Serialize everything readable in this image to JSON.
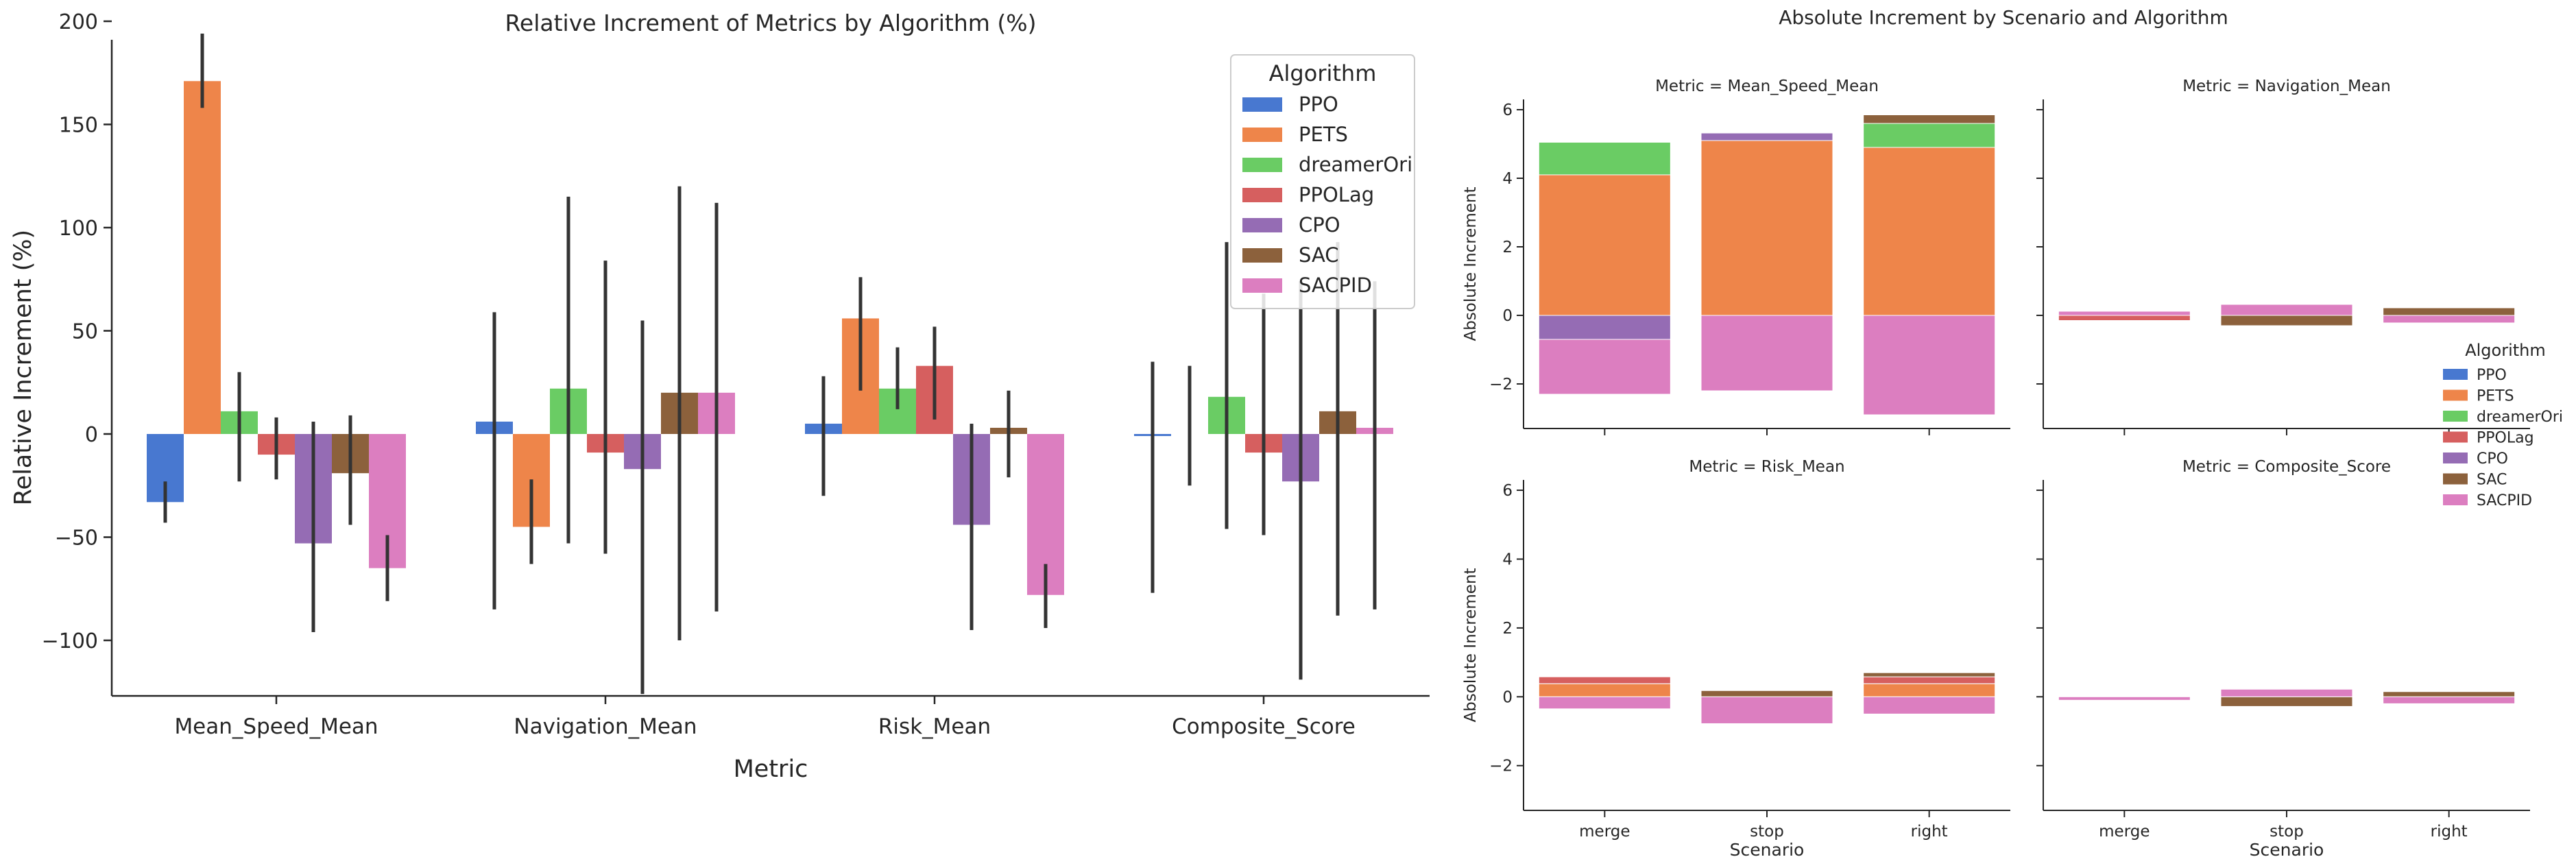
{
  "colors": {
    "PPO": "#4878d0",
    "PETS": "#ee854a",
    "dreamerOri": "#6acc64",
    "PPOLag": "#d65f5f",
    "CPO": "#956cb4",
    "SAC": "#8c613c",
    "SACPID": "#dc7ec0",
    "axis": "#262626",
    "errorbar": "#333333"
  },
  "chart_data": [
    {
      "type": "bar",
      "title": "Relative Increment of Metrics by Algorithm (%)",
      "xlabel": "Metric",
      "ylabel": "Relative Increment (%)",
      "categories": [
        "Mean_Speed_Mean",
        "Navigation_Mean",
        "Risk_Mean",
        "Composite_Score"
      ],
      "ylim": [
        -140,
        210
      ],
      "yticks": [
        -100,
        -50,
        0,
        50,
        100,
        150,
        200
      ],
      "legend": {
        "title": "Algorithm",
        "placement": "top-right"
      },
      "series": [
        {
          "name": "PPO",
          "values": [
            -33,
            6,
            5,
            -1
          ],
          "err_low": [
            -43,
            -85,
            -30,
            -77
          ],
          "err_high": [
            -23,
            59,
            28,
            35
          ]
        },
        {
          "name": "PETS",
          "values": [
            171,
            -45,
            56,
            0
          ],
          "err_low": [
            158,
            -63,
            21,
            -25
          ],
          "err_high": [
            194,
            -22,
            76,
            33
          ]
        },
        {
          "name": "dreamerOri",
          "values": [
            11,
            22,
            22,
            18
          ],
          "err_low": [
            -23,
            -53,
            12,
            -46
          ],
          "err_high": [
            30,
            115,
            42,
            93
          ]
        },
        {
          "name": "PPOLag",
          "values": [
            -10,
            -9,
            33,
            -9
          ],
          "err_low": [
            -22,
            -58,
            7,
            -49
          ],
          "err_high": [
            8,
            84,
            52,
            68
          ]
        },
        {
          "name": "CPO",
          "values": [
            -53,
            -17,
            -44,
            -23
          ],
          "err_low": [
            -96,
            -126,
            -95,
            -119
          ],
          "err_high": [
            6,
            55,
            5,
            74
          ]
        },
        {
          "name": "SAC",
          "values": [
            -19,
            20,
            3,
            11
          ],
          "err_low": [
            -44,
            -100,
            -21,
            -88
          ],
          "err_high": [
            9,
            120,
            21,
            93
          ]
        },
        {
          "name": "SACPID",
          "values": [
            -65,
            20,
            -78,
            3
          ],
          "err_low": [
            -81,
            -86,
            -94,
            -85
          ],
          "err_high": [
            -49,
            112,
            -63,
            74
          ]
        }
      ]
    },
    {
      "type": "bar",
      "title": "Absolute Increment by Scenario and Algorithm",
      "stacked": true,
      "xlabel": "Scenario",
      "ylabel": "Absolute Increment",
      "scenarios": [
        "merge",
        "stop",
        "right"
      ],
      "ylim": [
        -3.3,
        6.3
      ],
      "yticks": [
        -2,
        0,
        2,
        4,
        6
      ],
      "legend": {
        "title": "Algorithm",
        "placement": "right"
      },
      "facets": [
        {
          "title": "Metric = Mean_Speed_Mean",
          "series": [
            {
              "name": "PPO",
              "values": [
                0,
                0,
                0
              ]
            },
            {
              "name": "PETS",
              "values": [
                4.1,
                5.1,
                4.9
              ]
            },
            {
              "name": "dreamerOri",
              "values": [
                0.95,
                0,
                0.7
              ]
            },
            {
              "name": "PPOLag",
              "values": [
                0,
                0,
                0
              ]
            },
            {
              "name": "CPO",
              "values": [
                -0.7,
                0.22,
                0
              ]
            },
            {
              "name": "SAC",
              "values": [
                0,
                0,
                0.25
              ]
            },
            {
              "name": "SACPID",
              "values": [
                -1.6,
                -2.2,
                -2.9
              ]
            }
          ]
        },
        {
          "title": "Metric = Navigation_Mean",
          "series": [
            {
              "name": "PPO",
              "values": [
                0,
                0,
                0
              ]
            },
            {
              "name": "PETS",
              "values": [
                0,
                0,
                0
              ]
            },
            {
              "name": "dreamerOri",
              "values": [
                0,
                0,
                0
              ]
            },
            {
              "name": "PPOLag",
              "values": [
                -0.15,
                0,
                0
              ]
            },
            {
              "name": "CPO",
              "values": [
                0,
                0,
                0
              ]
            },
            {
              "name": "SAC",
              "values": [
                0,
                -0.3,
                0.22
              ]
            },
            {
              "name": "SACPID",
              "values": [
                0.12,
                0.32,
                -0.22
              ]
            }
          ]
        },
        {
          "title": "Metric = Risk_Mean",
          "series": [
            {
              "name": "PPO",
              "values": [
                0,
                0,
                0
              ]
            },
            {
              "name": "PETS",
              "values": [
                0.38,
                0,
                0.38
              ]
            },
            {
              "name": "dreamerOri",
              "values": [
                0,
                0,
                0
              ]
            },
            {
              "name": "PPOLag",
              "values": [
                0.2,
                0,
                0.2
              ]
            },
            {
              "name": "CPO",
              "values": [
                0,
                0,
                0
              ]
            },
            {
              "name": "SAC",
              "values": [
                0,
                0.18,
                0.12
              ]
            },
            {
              "name": "SACPID",
              "values": [
                -0.35,
                -0.78,
                -0.5
              ]
            }
          ]
        },
        {
          "title": "Metric = Composite_Score",
          "series": [
            {
              "name": "PPO",
              "values": [
                0,
                0,
                0
              ]
            },
            {
              "name": "PETS",
              "values": [
                0,
                0,
                0
              ]
            },
            {
              "name": "dreamerOri",
              "values": [
                0,
                0,
                0
              ]
            },
            {
              "name": "PPOLag",
              "values": [
                0,
                0,
                0
              ]
            },
            {
              "name": "CPO",
              "values": [
                0,
                0,
                0
              ]
            },
            {
              "name": "SAC",
              "values": [
                0,
                -0.28,
                0.15
              ]
            },
            {
              "name": "SACPID",
              "values": [
                -0.1,
                0.22,
                -0.2
              ]
            }
          ]
        }
      ]
    }
  ]
}
